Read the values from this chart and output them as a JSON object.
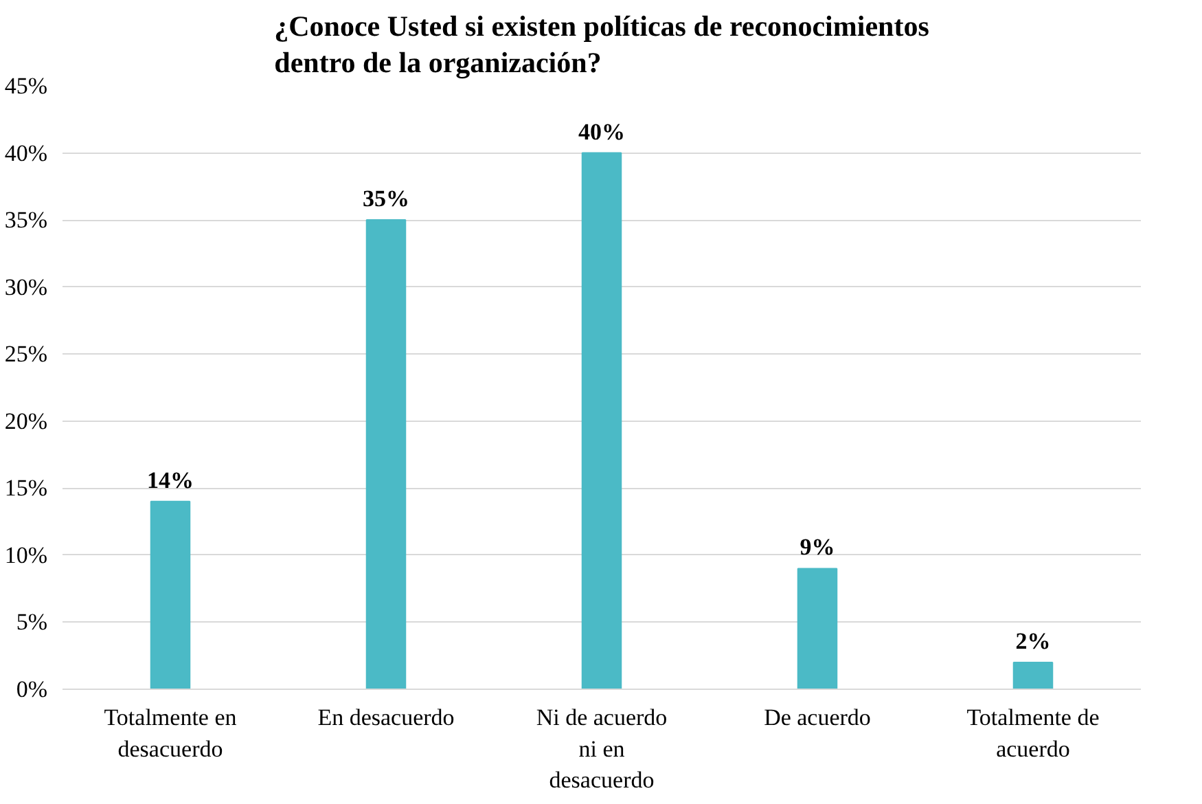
{
  "chart_data": {
    "type": "bar",
    "title": "¿Conoce Usted si existen políticas de reconocimientos\ndentro de la organización?",
    "categories": [
      "Totalmente en desacuerdo",
      "En desacuerdo",
      "Ni de acuerdo ni en desacuerdo",
      "De acuerdo",
      "Totalmente de acuerdo"
    ],
    "values": [
      14,
      35,
      40,
      9,
      2
    ],
    "value_labels": [
      "14%",
      "35%",
      "40%",
      "9%",
      "2%"
    ],
    "color": "#4bbac6",
    "ylim": [
      0,
      45
    ],
    "yticks": [
      {
        "value": 0,
        "label": "0%"
      },
      {
        "value": 5,
        "label": "5%"
      },
      {
        "value": 10,
        "label": "10%"
      },
      {
        "value": 15,
        "label": "15%"
      },
      {
        "value": 20,
        "label": "20%"
      },
      {
        "value": 25,
        "label": "25%"
      },
      {
        "value": 30,
        "label": "30%"
      },
      {
        "value": 35,
        "label": "35%"
      },
      {
        "value": 40,
        "label": "40%"
      },
      {
        "value": 45,
        "label": "45%"
      }
    ],
    "grid": "y"
  }
}
